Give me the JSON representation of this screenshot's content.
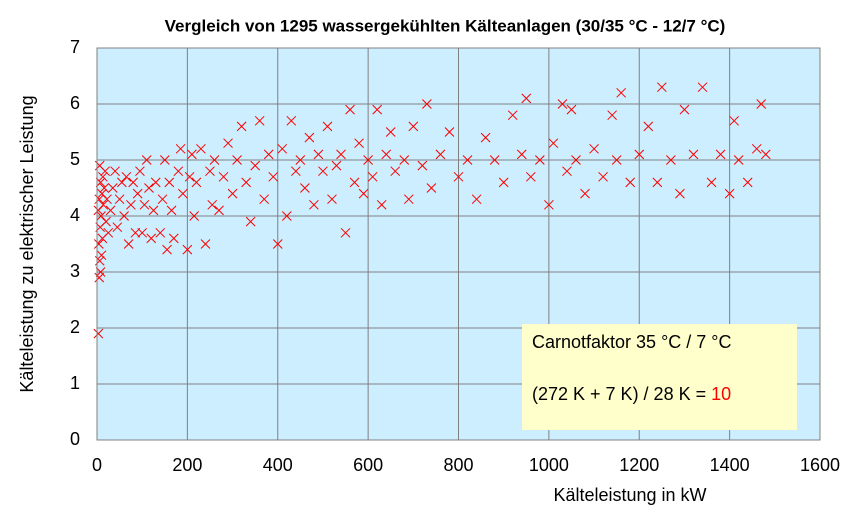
{
  "chart_data": {
    "type": "scatter",
    "title": "Vergleich von 1295 wassergekühlten Kälteanlagen (30/35 °C - 12/7 °C)",
    "xlabel": "Kälteleistung in kW",
    "ylabel": "Kälteleistung zu elektrischer Leistung",
    "xlim": [
      0,
      1600
    ],
    "ylim": [
      0,
      7
    ],
    "xticks": [
      0,
      200,
      400,
      600,
      800,
      1000,
      1200,
      1400,
      1600
    ],
    "yticks": [
      0,
      1,
      2,
      3,
      4,
      5,
      6,
      7
    ],
    "grid": true,
    "color": "#ff0000",
    "annotation": {
      "line1": "Carnotfaktor 35 °C / 7 °C",
      "line2": "(272 K + 7 K) / 28 K = ",
      "result": "10",
      "result_color": "#ff0000"
    },
    "x": [
      3,
      5,
      8,
      6,
      10,
      4,
      12,
      7,
      9,
      3,
      14,
      5,
      11,
      16,
      8,
      13,
      18,
      6,
      20,
      22,
      25,
      30,
      35,
      40,
      45,
      50,
      55,
      60,
      65,
      70,
      75,
      80,
      85,
      90,
      95,
      100,
      105,
      110,
      115,
      120,
      125,
      130,
      140,
      145,
      150,
      155,
      160,
      165,
      170,
      180,
      185,
      190,
      200,
      205,
      210,
      215,
      220,
      230,
      240,
      250,
      255,
      260,
      270,
      280,
      290,
      300,
      310,
      320,
      330,
      340,
      350,
      360,
      370,
      380,
      390,
      400,
      410,
      420,
      430,
      440,
      450,
      460,
      470,
      480,
      490,
      500,
      510,
      520,
      530,
      540,
      550,
      560,
      570,
      580,
      590,
      600,
      610,
      620,
      630,
      640,
      650,
      660,
      680,
      690,
      700,
      720,
      730,
      740,
      760,
      780,
      800,
      820,
      840,
      860,
      880,
      900,
      920,
      940,
      950,
      960,
      980,
      1000,
      1010,
      1030,
      1040,
      1050,
      1060,
      1080,
      1100,
      1120,
      1140,
      1150,
      1160,
      1180,
      1200,
      1220,
      1240,
      1250,
      1270,
      1290,
      1300,
      1320,
      1340,
      1360,
      1380,
      1400,
      1410,
      1420,
      1440,
      1460,
      1470,
      1480
    ],
    "values": [
      1.9,
      2.9,
      3.0,
      3.2,
      3.3,
      3.5,
      3.6,
      3.8,
      4.0,
      4.1,
      4.2,
      4.3,
      4.4,
      4.5,
      4.6,
      4.7,
      4.8,
      4.9,
      3.9,
      4.3,
      3.7,
      4.1,
      4.5,
      4.8,
      3.8,
      4.3,
      4.6,
      4.0,
      4.7,
      3.5,
      4.2,
      4.6,
      3.7,
      4.4,
      4.8,
      3.7,
      4.2,
      5.0,
      4.5,
      3.6,
      4.1,
      4.6,
      3.7,
      4.3,
      5.0,
      3.4,
      4.6,
      4.1,
      3.6,
      4.8,
      5.2,
      4.4,
      3.4,
      4.7,
      5.1,
      4.0,
      4.6,
      5.2,
      3.5,
      4.8,
      4.2,
      5.0,
      4.1,
      4.7,
      5.3,
      4.4,
      5.0,
      5.6,
      4.6,
      3.9,
      4.9,
      5.7,
      4.3,
      5.1,
      4.7,
      3.5,
      5.2,
      4.0,
      5.7,
      4.8,
      5.0,
      4.5,
      5.4,
      4.2,
      5.1,
      4.8,
      5.6,
      4.3,
      4.9,
      5.1,
      3.7,
      5.9,
      4.6,
      5.3,
      4.4,
      5.0,
      4.7,
      5.9,
      4.2,
      5.1,
      5.5,
      4.8,
      5.0,
      4.3,
      5.6,
      4.9,
      6.0,
      4.5,
      5.1,
      5.5,
      4.7,
      5.0,
      4.3,
      5.4,
      5.0,
      4.6,
      5.8,
      5.1,
      6.1,
      4.7,
      5.0,
      4.2,
      5.3,
      6.0,
      4.8,
      5.9,
      5.0,
      4.4,
      5.2,
      4.7,
      5.8,
      5.0,
      6.2,
      4.6,
      5.1,
      5.6,
      4.6,
      6.3,
      5.0,
      4.4,
      5.9,
      5.1,
      6.3,
      4.6,
      5.1,
      4.4,
      5.7,
      5.0,
      4.6,
      5.2,
      6.0,
      5.1
    ]
  }
}
